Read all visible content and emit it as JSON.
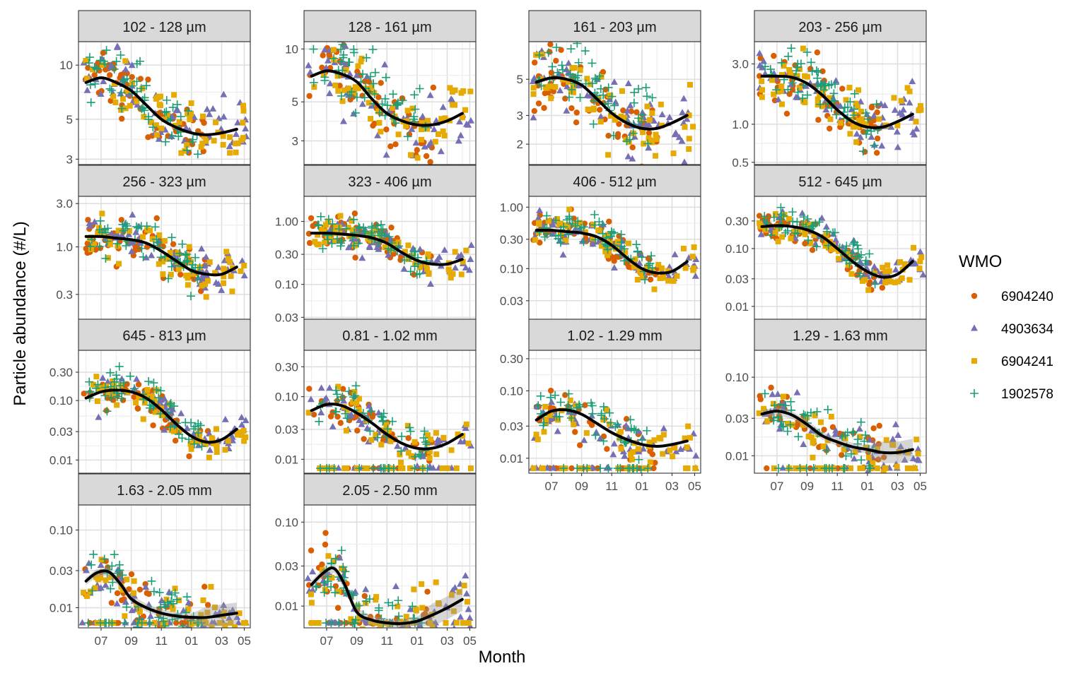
{
  "chart_data": {
    "type": "scatter",
    "xlabel": "Month",
    "ylabel": "Particle abundance (#/L)",
    "y_scale": "log10",
    "grid": true,
    "legend": {
      "title": "WMO",
      "placement": "right",
      "entries": [
        {
          "name": "6904240",
          "color": "#d95f02",
          "shape": "circle"
        },
        {
          "name": "4903634",
          "color": "#7570b3",
          "shape": "triangle"
        },
        {
          "name": "6904241",
          "color": "#e6ab02",
          "shape": "square"
        },
        {
          "name": "1902578",
          "color": "#1b9e77",
          "shape": "plus"
        }
      ]
    },
    "x_ticks": [
      "07",
      "09",
      "11",
      "01",
      "03",
      "05"
    ],
    "x_range_months": [
      0,
      11.4
    ],
    "trend_color": "#000000",
    "panels": [
      {
        "label": "102 - 128 µm",
        "ylim": [
          2.8,
          13.5
        ],
        "y_ticks": [
          {
            "v": 10,
            "label": "10"
          },
          {
            "v": 5,
            "label": "5"
          },
          {
            "v": 3,
            "label": "3"
          }
        ],
        "trend": [
          [
            0.5,
            8
          ],
          [
            1.5,
            8.5
          ],
          [
            2.5,
            8
          ],
          [
            3.5,
            7.2
          ],
          [
            4.5,
            6
          ],
          [
            5.5,
            5
          ],
          [
            6.5,
            4.5
          ],
          [
            7.5,
            4.2
          ],
          [
            8.5,
            4.1
          ],
          [
            9.5,
            4.2
          ],
          [
            10.5,
            4.4
          ]
        ],
        "band": false
      },
      {
        "label": "128 - 161 µm",
        "ylim": [
          2.2,
          11
        ],
        "y_ticks": [
          {
            "v": 10,
            "label": "10"
          },
          {
            "v": 5,
            "label": "5"
          },
          {
            "v": 3,
            "label": "3"
          }
        ],
        "trend": [
          [
            0.5,
            7
          ],
          [
            1.5,
            7.5
          ],
          [
            2.5,
            7.2
          ],
          [
            3.5,
            6.5
          ],
          [
            4.5,
            5.2
          ],
          [
            5.5,
            4.3
          ],
          [
            6.5,
            3.9
          ],
          [
            7.5,
            3.7
          ],
          [
            8.5,
            3.7
          ],
          [
            9.5,
            3.9
          ],
          [
            10.5,
            4.3
          ]
        ],
        "band": false
      },
      {
        "label": "161 - 203 µm",
        "ylim": [
          1.5,
          8.5
        ],
        "y_ticks": [
          {
            "v": 5,
            "label": "5"
          },
          {
            "v": 3,
            "label": "3"
          },
          {
            "v": 2,
            "label": "2"
          }
        ],
        "trend": [
          [
            0.5,
            4.8
          ],
          [
            1.5,
            5.1
          ],
          [
            2.5,
            5.0
          ],
          [
            3.5,
            4.6
          ],
          [
            4.5,
            3.8
          ],
          [
            5.5,
            3.1
          ],
          [
            6.5,
            2.7
          ],
          [
            7.5,
            2.5
          ],
          [
            8.5,
            2.5
          ],
          [
            9.5,
            2.7
          ],
          [
            10.5,
            3.0
          ]
        ],
        "band": false
      },
      {
        "label": "203 - 256 µm",
        "ylim": [
          0.48,
          4.5
        ],
        "y_ticks": [
          {
            "v": 3,
            "label": "3.0"
          },
          {
            "v": 1,
            "label": "1.0"
          },
          {
            "v": 0.5,
            "label": "0.5"
          }
        ],
        "trend": [
          [
            0.5,
            2.4
          ],
          [
            1.5,
            2.4
          ],
          [
            2.5,
            2.35
          ],
          [
            3.5,
            2.1
          ],
          [
            4.5,
            1.7
          ],
          [
            5.5,
            1.3
          ],
          [
            6.5,
            1.05
          ],
          [
            7.5,
            0.95
          ],
          [
            8.5,
            0.95
          ],
          [
            9.5,
            1.05
          ],
          [
            10.5,
            1.2
          ]
        ],
        "band": false
      },
      {
        "label": "256 - 323 µm",
        "ylim": [
          0.16,
          3.6
        ],
        "y_ticks": [
          {
            "v": 3,
            "label": "3.0"
          },
          {
            "v": 1,
            "label": "1.0"
          },
          {
            "v": 0.3,
            "label": "0.3"
          }
        ],
        "trend": [
          [
            0.5,
            1.3
          ],
          [
            1.5,
            1.3
          ],
          [
            2.5,
            1.25
          ],
          [
            3.5,
            1.2
          ],
          [
            4.5,
            1.1
          ],
          [
            5.5,
            0.9
          ],
          [
            6.5,
            0.7
          ],
          [
            7.5,
            0.55
          ],
          [
            8.5,
            0.5
          ],
          [
            9.5,
            0.5
          ],
          [
            10.5,
            0.6
          ]
        ],
        "band": false
      },
      {
        "label": "323 - 406 µm",
        "ylim": [
          0.028,
          2.5
        ],
        "y_ticks": [
          {
            "v": 1,
            "label": "1.00"
          },
          {
            "v": 0.3,
            "label": "0.30"
          },
          {
            "v": 0.1,
            "label": "0.10"
          },
          {
            "v": 0.03,
            "label": "0.03"
          }
        ],
        "trend": [
          [
            0.5,
            0.65
          ],
          [
            1.5,
            0.65
          ],
          [
            2.5,
            0.63
          ],
          [
            3.5,
            0.6
          ],
          [
            4.5,
            0.55
          ],
          [
            5.5,
            0.45
          ],
          [
            6.5,
            0.32
          ],
          [
            7.5,
            0.24
          ],
          [
            8.5,
            0.21
          ],
          [
            9.5,
            0.21
          ],
          [
            10.5,
            0.25
          ]
        ],
        "band": false
      },
      {
        "label": "406 - 512 µm",
        "ylim": [
          0.015,
          1.5
        ],
        "y_ticks": [
          {
            "v": 1,
            "label": "1.00"
          },
          {
            "v": 0.3,
            "label": "0.30"
          },
          {
            "v": 0.1,
            "label": "0.10"
          },
          {
            "v": 0.03,
            "label": "0.03"
          }
        ],
        "trend": [
          [
            0.5,
            0.42
          ],
          [
            1.5,
            0.42
          ],
          [
            2.5,
            0.4
          ],
          [
            3.5,
            0.38
          ],
          [
            4.5,
            0.33
          ],
          [
            5.5,
            0.24
          ],
          [
            6.5,
            0.15
          ],
          [
            7.5,
            0.1
          ],
          [
            8.5,
            0.085
          ],
          [
            9.5,
            0.09
          ],
          [
            10.5,
            0.13
          ]
        ],
        "band": false
      },
      {
        "label": "512 - 645 µm",
        "ylim": [
          0.006,
          0.8
        ],
        "y_ticks": [
          {
            "v": 0.3,
            "label": "0.30"
          },
          {
            "v": 0.1,
            "label": "0.10"
          },
          {
            "v": 0.03,
            "label": "0.03"
          },
          {
            "v": 0.01,
            "label": "0.01"
          }
        ],
        "trend": [
          [
            0.5,
            0.24
          ],
          [
            1.5,
            0.25
          ],
          [
            2.5,
            0.24
          ],
          [
            3.5,
            0.21
          ],
          [
            4.5,
            0.16
          ],
          [
            5.5,
            0.1
          ],
          [
            6.5,
            0.06
          ],
          [
            7.5,
            0.04
          ],
          [
            8.5,
            0.032
          ],
          [
            9.5,
            0.036
          ],
          [
            10.5,
            0.06
          ]
        ],
        "band": false
      },
      {
        "label": "645 - 813 µm",
        "ylim": [
          0.006,
          0.7
        ],
        "y_ticks": [
          {
            "v": 0.3,
            "label": "0.30"
          },
          {
            "v": 0.1,
            "label": "0.10"
          },
          {
            "v": 0.03,
            "label": "0.03"
          },
          {
            "v": 0.01,
            "label": "0.01"
          }
        ],
        "trend": [
          [
            0.5,
            0.11
          ],
          [
            1.5,
            0.14
          ],
          [
            2.5,
            0.15
          ],
          [
            3.5,
            0.14
          ],
          [
            4.5,
            0.11
          ],
          [
            5.5,
            0.07
          ],
          [
            6.5,
            0.04
          ],
          [
            7.5,
            0.025
          ],
          [
            8.5,
            0.02
          ],
          [
            9.5,
            0.022
          ],
          [
            10.5,
            0.033
          ]
        ],
        "band": false
      },
      {
        "label": "0.81 - 1.02 mm",
        "ylim": [
          0.006,
          0.55
        ],
        "y_ticks": [
          {
            "v": 0.3,
            "label": "0.30"
          },
          {
            "v": 0.1,
            "label": "0.10"
          },
          {
            "v": 0.03,
            "label": "0.03"
          },
          {
            "v": 0.01,
            "label": "0.01"
          }
        ],
        "trend": [
          [
            0.5,
            0.06
          ],
          [
            1.5,
            0.075
          ],
          [
            2.5,
            0.072
          ],
          [
            3.5,
            0.055
          ],
          [
            4.5,
            0.038
          ],
          [
            5.5,
            0.025
          ],
          [
            6.5,
            0.018
          ],
          [
            7.5,
            0.015
          ],
          [
            8.5,
            0.015
          ],
          [
            9.5,
            0.018
          ],
          [
            10.5,
            0.025
          ]
        ],
        "band": false
      },
      {
        "label": "1.02 - 1.29 mm",
        "ylim": [
          0.006,
          0.4
        ],
        "y_ticks": [
          {
            "v": 0.3,
            "label": "0.30"
          },
          {
            "v": 0.1,
            "label": "0.10"
          },
          {
            "v": 0.03,
            "label": "0.03"
          },
          {
            "v": 0.01,
            "label": "0.01"
          }
        ],
        "trend": [
          [
            0.5,
            0.037
          ],
          [
            1.5,
            0.05
          ],
          [
            2.5,
            0.052
          ],
          [
            3.5,
            0.045
          ],
          [
            4.5,
            0.033
          ],
          [
            5.5,
            0.024
          ],
          [
            6.5,
            0.019
          ],
          [
            7.5,
            0.016
          ],
          [
            8.5,
            0.015
          ],
          [
            9.5,
            0.016
          ],
          [
            10.5,
            0.018
          ]
        ],
        "band": false
      },
      {
        "label": "1.29 - 1.63 mm",
        "ylim": [
          0.006,
          0.22
        ],
        "y_ticks": [
          {
            "v": 0.1,
            "label": "0.10"
          },
          {
            "v": 0.03,
            "label": "0.03"
          },
          {
            "v": 0.01,
            "label": "0.01"
          }
        ],
        "trend": [
          [
            0.5,
            0.034
          ],
          [
            1.5,
            0.037
          ],
          [
            2.5,
            0.033
          ],
          [
            3.5,
            0.025
          ],
          [
            4.5,
            0.018
          ],
          [
            5.5,
            0.015
          ],
          [
            6.5,
            0.013
          ],
          [
            7.5,
            0.012
          ],
          [
            8.5,
            0.011
          ],
          [
            9.5,
            0.011
          ],
          [
            10.5,
            0.012
          ]
        ],
        "band": true
      },
      {
        "label": "1.63 - 2.05 mm",
        "ylim": [
          0.0055,
          0.21
        ],
        "y_ticks": [
          {
            "v": 0.1,
            "label": "0.10"
          },
          {
            "v": 0.03,
            "label": "0.03"
          },
          {
            "v": 0.01,
            "label": "0.01"
          }
        ],
        "trend": [
          [
            0.5,
            0.022
          ],
          [
            1.2,
            0.028
          ],
          [
            2.0,
            0.029
          ],
          [
            2.8,
            0.02
          ],
          [
            3.5,
            0.013
          ],
          [
            4.5,
            0.01
          ],
          [
            5.5,
            0.0085
          ],
          [
            6.5,
            0.0078
          ],
          [
            7.5,
            0.0075
          ],
          [
            8.5,
            0.0075
          ],
          [
            9.5,
            0.008
          ],
          [
            10.5,
            0.0085
          ]
        ],
        "band": true
      },
      {
        "label": "2.05 - 2.50 mm",
        "ylim": [
          0.0055,
          0.16
        ],
        "y_ticks": [
          {
            "v": 0.1,
            "label": "0.10"
          },
          {
            "v": 0.03,
            "label": "0.03"
          },
          {
            "v": 0.01,
            "label": "0.01"
          }
        ],
        "trend": [
          [
            0.5,
            0.018
          ],
          [
            1.3,
            0.025
          ],
          [
            2.0,
            0.028
          ],
          [
            2.7,
            0.018
          ],
          [
            3.5,
            0.0085
          ],
          [
            4.5,
            0.0068
          ],
          [
            5.5,
            0.0063
          ],
          [
            6.5,
            0.0062
          ],
          [
            7.5,
            0.0066
          ],
          [
            8.5,
            0.0078
          ],
          [
            9.5,
            0.0095
          ],
          [
            10.5,
            0.012
          ]
        ],
        "band": true
      }
    ]
  }
}
